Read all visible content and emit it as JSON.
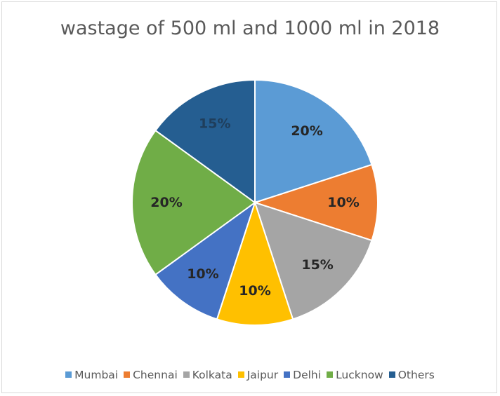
{
  "chart_data": {
    "type": "pie",
    "title": "wastage of 500 ml  and 1000 ml in 2018",
    "categories": [
      "Mumbai",
      "Chennai",
      "Kolkata",
      "Jaipur",
      "Delhi",
      "Lucknow",
      "Others"
    ],
    "values": [
      20,
      10,
      15,
      10,
      10,
      20,
      15
    ],
    "labels": [
      "20%",
      "10%",
      "15%",
      "10%",
      "10%",
      "20%",
      "15%"
    ],
    "colors": [
      "#5b9bd5",
      "#ed7d31",
      "#a5a5a5",
      "#ffc000",
      "#4472c4",
      "#70ad47",
      "#255e91"
    ],
    "label_colors": [
      "#262626",
      "#262626",
      "#262626",
      "#262626",
      "#262626",
      "#262626",
      "#1f3e5c"
    ],
    "legend_position": "bottom"
  }
}
